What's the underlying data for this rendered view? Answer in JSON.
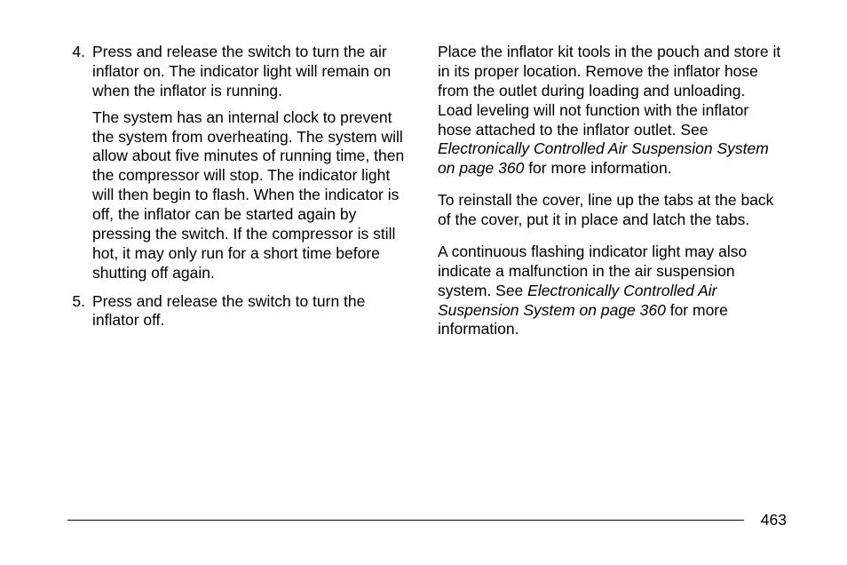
{
  "page_number": "463",
  "left": {
    "items": [
      {
        "num": "4.",
        "paras": [
          "Press and release the switch to turn the air inflator on. The indicator light will remain on when the inflator is running.",
          "The system has an internal clock to prevent the system from overheating. The system will allow about five minutes of running time, then the compressor will stop. The indicator light will then begin to flash. When the indicator is off, the inflator can be started again by pressing the switch. If the compressor is still hot, it may only run for a short time before shutting off again."
        ]
      },
      {
        "num": "5.",
        "paras": [
          "Press and release the switch to turn the inflator off."
        ]
      }
    ]
  },
  "right": {
    "p1_a": "Place the inflator kit tools in the pouch and store it in its proper location. Remove the inflator hose from the outlet during loading and unloading. Load leveling will not function with the inflator hose attached to the inflator outlet. See ",
    "p1_i": "Electronically Controlled Air Suspension System on page 360",
    "p1_b": " for more information.",
    "p2": "To reinstall the cover, line up the tabs at the back of the cover, put it in place and latch the tabs.",
    "p3_a": "A continuous flashing indicator light may also indicate a malfunction in the air suspension system. See ",
    "p3_i": "Electronically Controlled Air Suspension System on page 360",
    "p3_b": " for more information."
  },
  "style": {
    "font_size_pt": 13,
    "line_height": 1.25,
    "text_color": "#000000",
    "background_color": "#ffffff",
    "rule_color": "#000000"
  }
}
